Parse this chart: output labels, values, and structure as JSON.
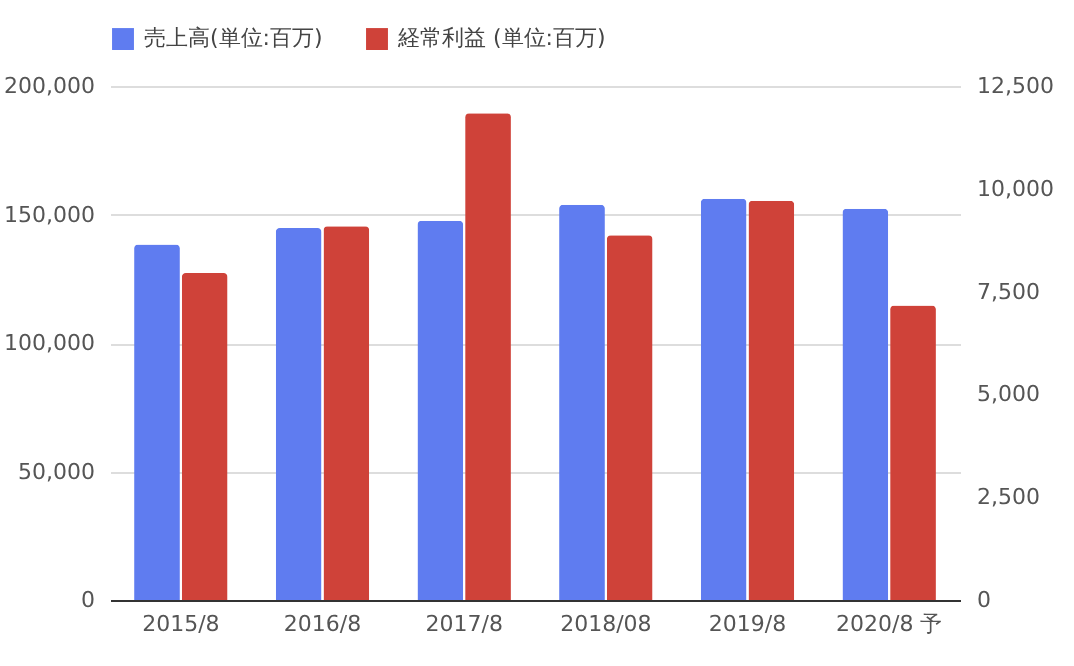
{
  "chart_data": {
    "type": "bar",
    "categories": [
      "2015/8",
      "2016/8",
      "2017/8",
      "2018/08",
      "2019/8",
      "2020/8 予"
    ],
    "series": [
      {
        "name": "売上高(単位:百万)",
        "color": "#5f7cf0",
        "values": [
          138300,
          144700,
          147600,
          153800,
          156100,
          152200
        ]
      },
      {
        "name": "経常利益 (単位:百万)",
        "color": "#cf4239",
        "axis": "y2",
        "values": [
          7950,
          9090,
          11840,
          8870,
          9710,
          7160
        ]
      }
    ],
    "ylim": [
      0,
      200000
    ],
    "yticks": [
      0,
      {
        "value": 50000,
        "label": "50,000"
      },
      {
        "value": 100000,
        "label": "100,000"
      },
      {
        "value": 150000,
        "label": "150,000"
      },
      {
        "value": 200000,
        "label": "200,000"
      }
    ],
    "y2lim": [
      0,
      12500
    ],
    "y2ticks": [
      0,
      {
        "value": 2500,
        "label": "2,500"
      },
      {
        "value": 5000,
        "label": "5,000"
      },
      {
        "value": 7500,
        "label": "7,500"
      },
      {
        "value": 10000,
        "label": "10,000"
      },
      {
        "value": 12500,
        "label": "12,500"
      }
    ],
    "grid": "y",
    "legend": "top"
  }
}
